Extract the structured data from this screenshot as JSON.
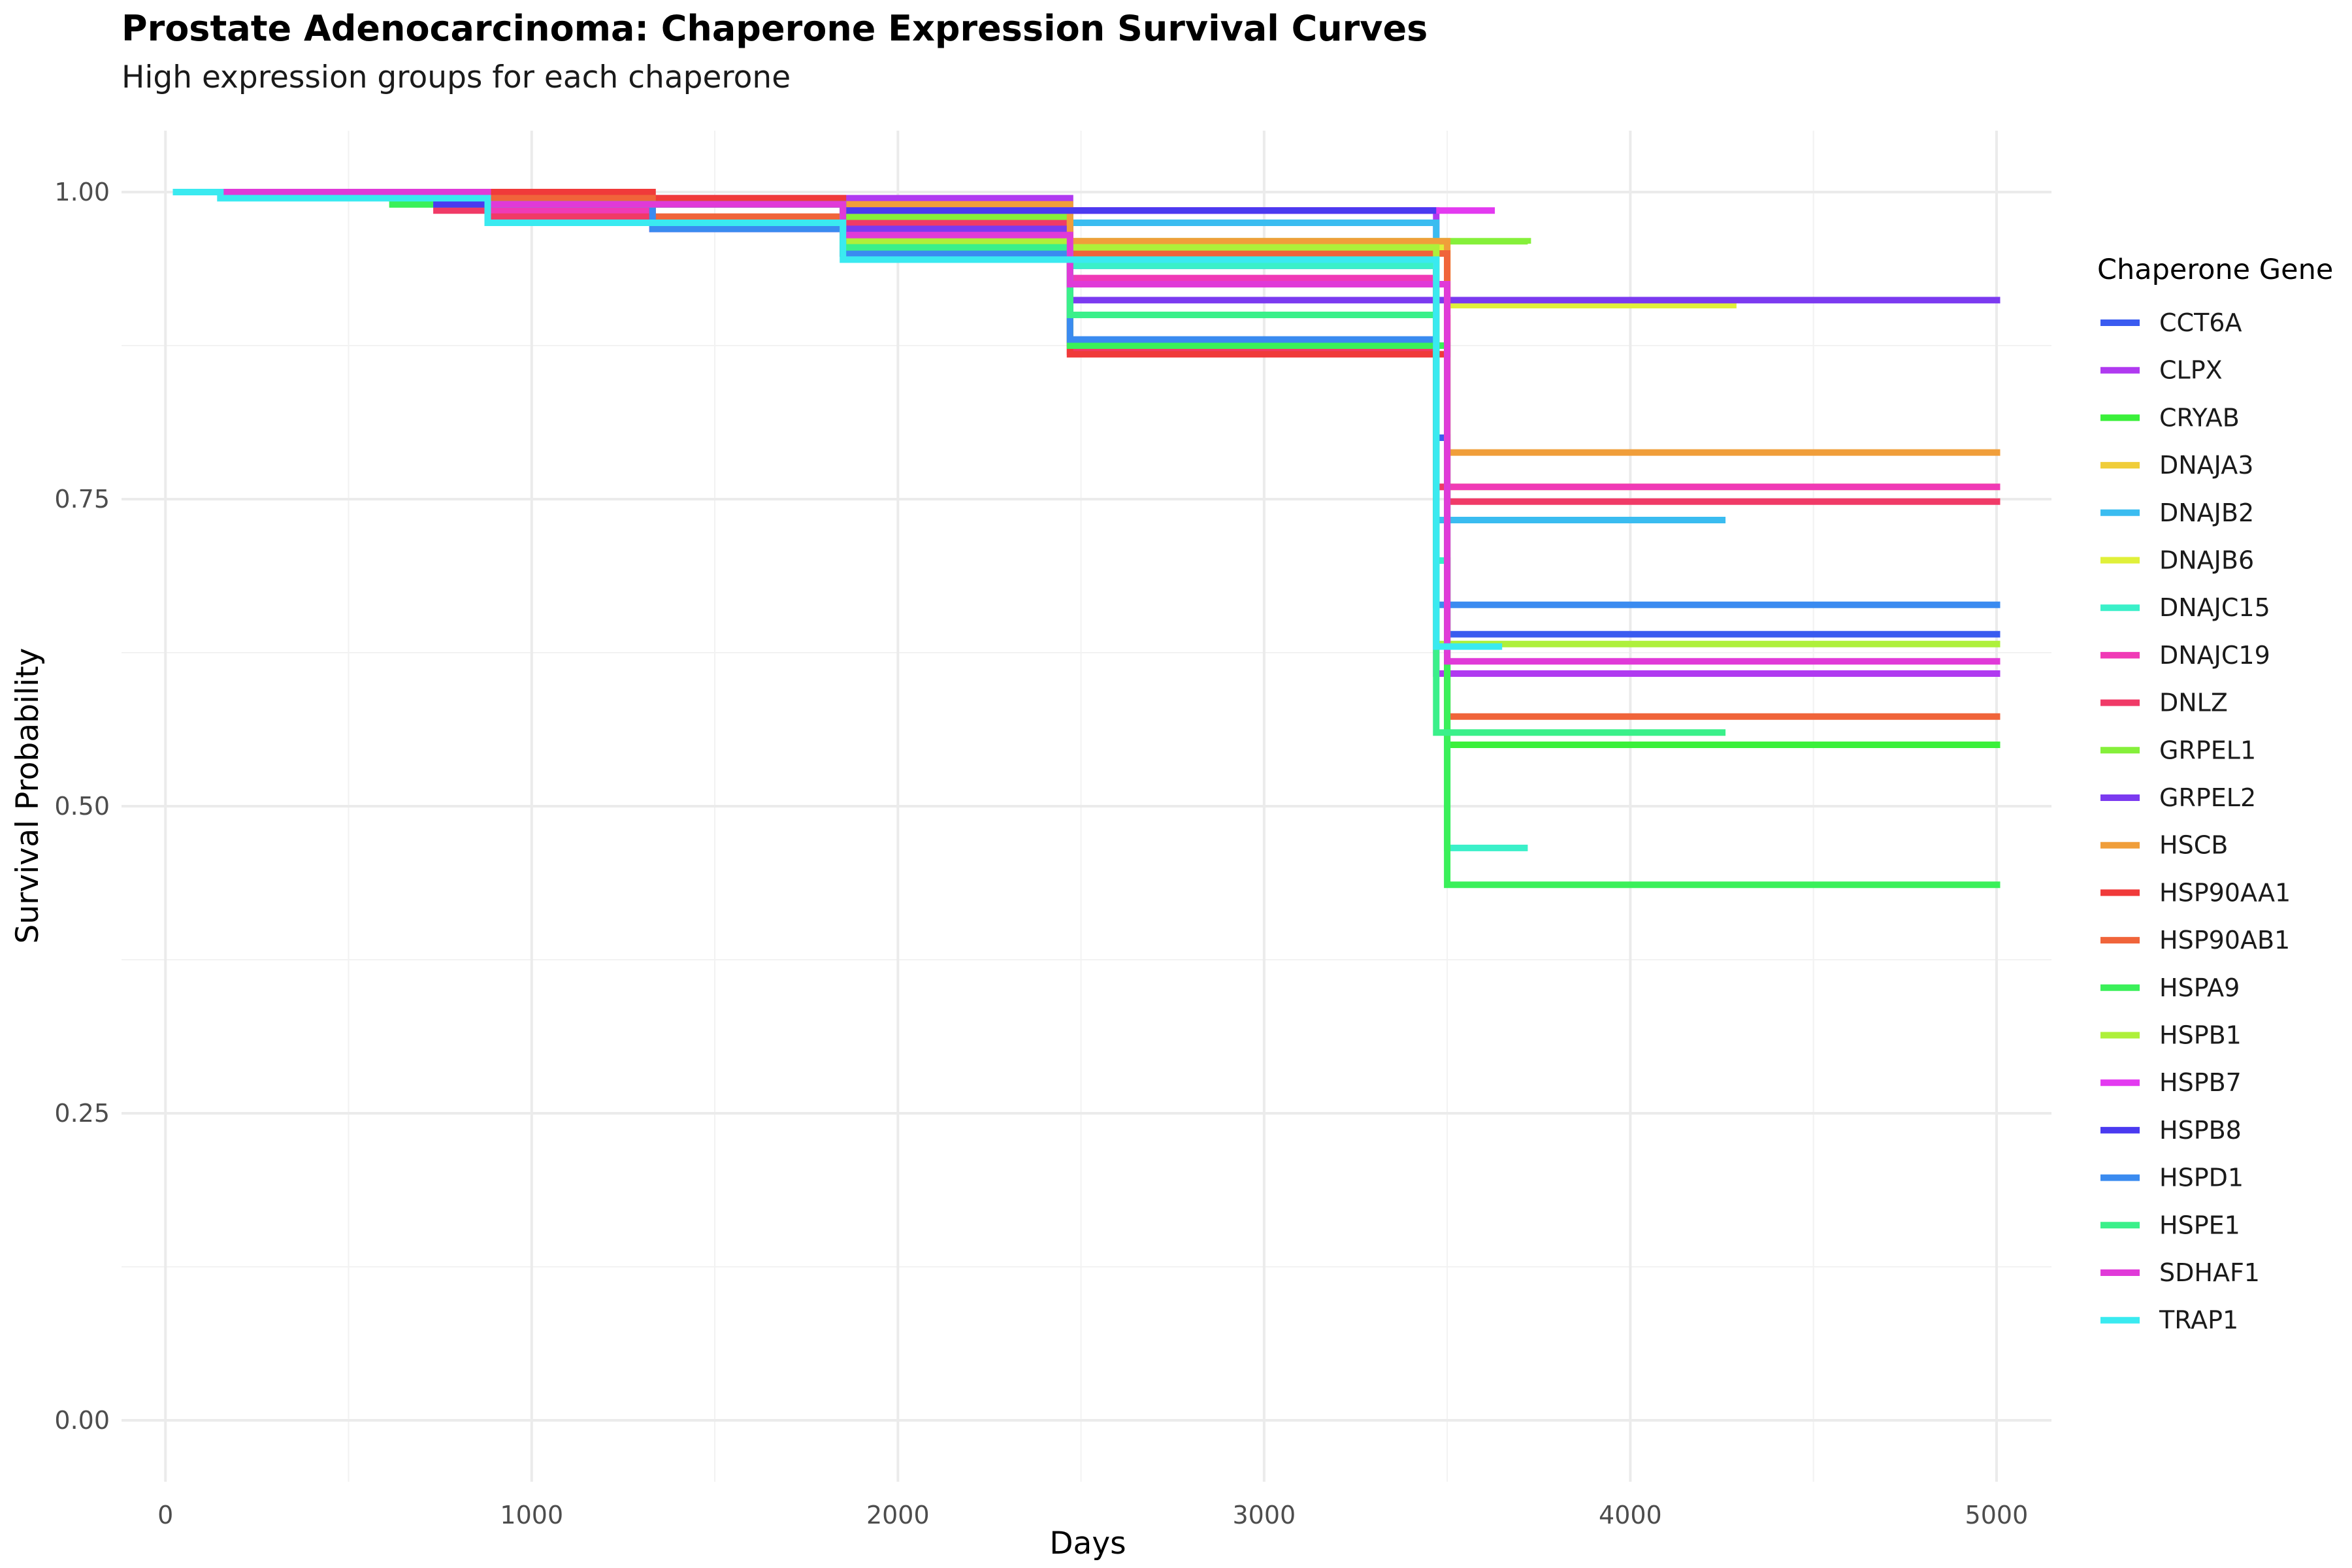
{
  "chart_data": {
    "type": "line",
    "title": "Prostate Adenocarcinoma: Chaperone Expression Survival Curves",
    "subtitle": "High expression groups for each chaperone",
    "xlabel": "Days",
    "ylabel": "Survival Probability",
    "xlim": [
      -120,
      5150
    ],
    "ylim": [
      -0.05,
      1.05
    ],
    "x_ticks": [
      0,
      1000,
      2000,
      3000,
      4000,
      5000
    ],
    "x_tick_labels": [
      "0",
      "1000",
      "2000",
      "3000",
      "4000",
      "5000"
    ],
    "y_ticks": [
      0,
      0.25,
      0.5,
      0.75,
      1.0
    ],
    "y_tick_labels": [
      "0.00",
      "0.25",
      "0.50",
      "0.75",
      "1.00"
    ],
    "grid": true,
    "legend_title": "Chaperone Gene",
    "legend_position": "right",
    "series": [
      {
        "name": "CCT6A",
        "color": "#3A5BF0",
        "x": [
          20,
          740,
          1850,
          2470,
          3470,
          3500,
          5010
        ],
        "y": [
          1.0,
          0.993,
          0.985,
          0.94,
          0.8,
          0.64,
          0.64
        ]
      },
      {
        "name": "CLPX",
        "color": "#B03AF0",
        "x": [
          20,
          880,
          1330,
          2470,
          3470,
          5010
        ],
        "y": [
          1.0,
          0.993,
          0.995,
          0.985,
          0.608,
          0.608
        ]
      },
      {
        "name": "CRYAB",
        "color": "#3AF03A",
        "x": [
          20,
          620,
          1850,
          2470,
          3470,
          3500,
          5010
        ],
        "y": [
          1.0,
          0.99,
          0.96,
          0.95,
          0.7,
          0.55,
          0.55
        ]
      },
      {
        "name": "DNAJA3",
        "color": "#F0CD3A",
        "x": [
          20,
          740,
          1850,
          2470,
          3500,
          5010
        ],
        "y": [
          1.0,
          0.99,
          0.96,
          0.955,
          0.76,
          0.76
        ]
      },
      {
        "name": "DNAJB2",
        "color": "#3ABCF0",
        "x": [
          20,
          880,
          1850,
          2470,
          3470,
          4260
        ],
        "y": [
          1.0,
          0.99,
          0.975,
          0.975,
          0.733,
          0.733
        ]
      },
      {
        "name": "DNAJB6",
        "color": "#E0F03A",
        "x": [
          20,
          880,
          1850,
          2470,
          3500,
          4290
        ],
        "y": [
          1.0,
          0.99,
          0.97,
          0.955,
          0.908,
          0.908
        ]
      },
      {
        "name": "DNAJC15",
        "color": "#3AF0C9",
        "x": [
          20,
          880,
          1850,
          2470,
          3470,
          3500,
          3720
        ],
        "y": [
          1.0,
          0.99,
          0.96,
          0.94,
          0.7,
          0.466,
          0.466
        ]
      },
      {
        "name": "DNAJC19",
        "color": "#F03AB6",
        "x": [
          20,
          880,
          1330,
          2470,
          3470,
          5010
        ],
        "y": [
          1.0,
          0.985,
          0.97,
          0.93,
          0.76,
          0.76
        ]
      },
      {
        "name": "DNLZ",
        "color": "#F03A67",
        "x": [
          20,
          740,
          880,
          1330,
          2470,
          3470,
          3500,
          5010
        ],
        "y": [
          1.0,
          0.985,
          0.98,
          0.975,
          0.87,
          0.76,
          0.748,
          0.748
        ]
      },
      {
        "name": "GRPEL1",
        "color": "#85F03A",
        "x": [
          20,
          880,
          1850,
          2470,
          3500,
          3720
        ],
        "y": [
          1.0,
          0.99,
          0.98,
          0.96,
          0.96,
          0.958
        ]
      },
      {
        "name": "GRPEL2",
        "color": "#7B3AF0",
        "x": [
          20,
          880,
          1330,
          2470,
          3500,
          5010
        ],
        "y": [
          1.0,
          0.99,
          0.97,
          0.912,
          0.912,
          0.912
        ]
      },
      {
        "name": "HSCB",
        "color": "#F09E3A",
        "x": [
          20,
          740,
          1330,
          2470,
          3500,
          5010
        ],
        "y": [
          1.0,
          0.995,
          0.99,
          0.96,
          0.788,
          0.788
        ]
      },
      {
        "name": "HSP90AA1",
        "color": "#F03A3A",
        "x": [
          20,
          1330,
          1850,
          2470,
          3470,
          3500
        ],
        "y": [
          1.0,
          0.995,
          0.95,
          0.868,
          0.868,
          0.9
        ]
      },
      {
        "name": "HSP90AB1",
        "color": "#F0643A",
        "x": [
          20,
          880,
          1330,
          1850,
          2470,
          3500,
          5010
        ],
        "y": [
          1.0,
          0.995,
          0.98,
          0.95,
          0.95,
          0.573,
          0.573
        ]
      },
      {
        "name": "HSPA9",
        "color": "#3AF059",
        "x": [
          20,
          620,
          1850,
          2470,
          3500,
          5010
        ],
        "y": [
          1.0,
          0.99,
          0.955,
          0.875,
          0.436,
          0.436
        ]
      },
      {
        "name": "HSPB1",
        "color": "#AEF03A",
        "x": [
          20,
          880,
          1850,
          2470,
          3470,
          5010
        ],
        "y": [
          1.0,
          0.99,
          0.96,
          0.955,
          0.632,
          0.632
        ]
      },
      {
        "name": "HSPB7",
        "color": "#E33AF0",
        "x": [
          20,
          880,
          1850,
          2470,
          3470,
          3630
        ],
        "y": [
          1.0,
          0.99,
          0.985,
          0.985,
          0.985,
          0.985
        ]
      },
      {
        "name": "HSPB8",
        "color": "#4A3AF0",
        "x": [
          20,
          150,
          740,
          1850,
          2470,
          3470
        ],
        "y": [
          1.0,
          1.0,
          0.99,
          0.985,
          0.985,
          0.985
        ]
      },
      {
        "name": "HSPD1",
        "color": "#3A8BF0",
        "x": [
          20,
          880,
          1330,
          1850,
          2470,
          3470,
          5010
        ],
        "y": [
          1.0,
          0.99,
          0.97,
          0.95,
          0.88,
          0.664,
          0.664
        ]
      },
      {
        "name": "HSPE1",
        "color": "#3AF08A",
        "x": [
          20,
          880,
          1850,
          2470,
          3470,
          4260
        ],
        "y": [
          1.0,
          0.99,
          0.955,
          0.9,
          0.56,
          0.56
        ]
      },
      {
        "name": "SDHAF1",
        "color": "#E03AD8",
        "x": [
          20,
          880,
          1850,
          2470,
          3500,
          5010
        ],
        "y": [
          1.0,
          0.99,
          0.965,
          0.925,
          0.618,
          0.618
        ]
      },
      {
        "name": "TRAP1",
        "color": "#3AEAF0",
        "x": [
          20,
          150,
          880,
          1850,
          3470,
          3650
        ],
        "y": [
          1.0,
          0.995,
          0.975,
          0.945,
          0.63,
          0.63
        ]
      }
    ]
  }
}
